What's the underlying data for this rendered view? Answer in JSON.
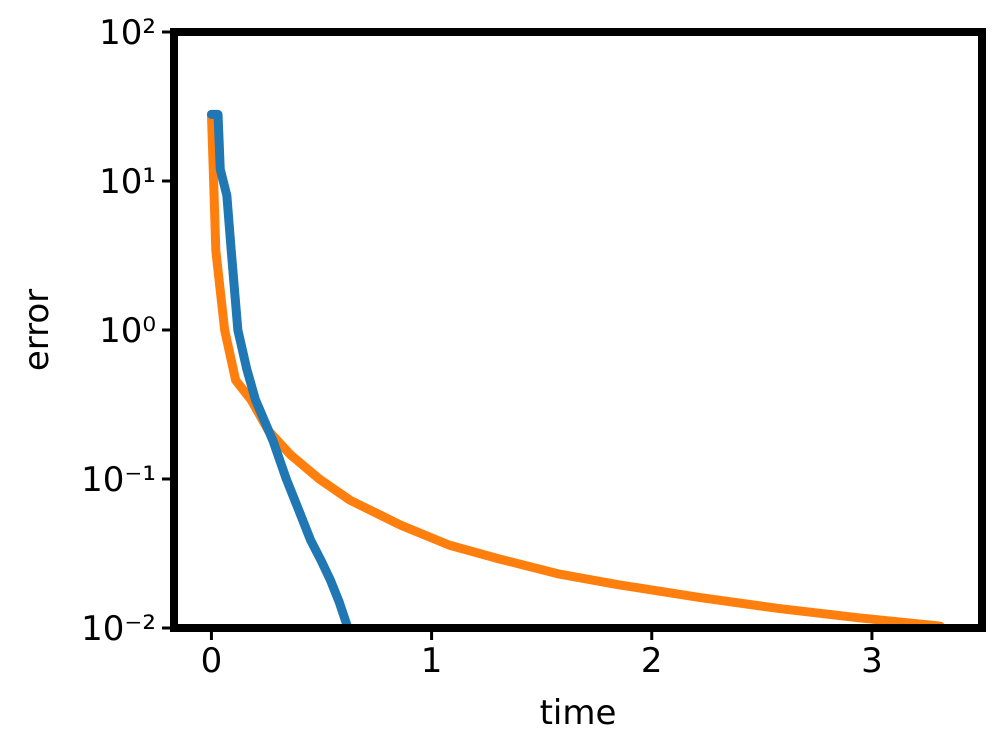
{
  "chart_data": {
    "type": "line",
    "x_label": "time",
    "y_label": "error",
    "log_y": true,
    "xlim": [
      -0.17,
      3.5
    ],
    "ylim": [
      0.01,
      100
    ],
    "xticks": [
      0,
      1,
      2,
      3
    ],
    "yticks": [
      {
        "value": 100,
        "label": "10²"
      },
      {
        "value": 10,
        "label": "10¹"
      },
      {
        "value": 1,
        "label": "10⁰"
      },
      {
        "value": 0.1,
        "label": "10⁻¹"
      },
      {
        "value": 0.01,
        "label": "10⁻²"
      }
    ],
    "series": [
      {
        "color": "#1f77b4",
        "x": [
          0.0,
          0.03,
          0.04,
          0.07,
          0.09,
          0.12,
          0.16,
          0.2,
          0.28,
          0.34,
          0.4,
          0.45,
          0.5,
          0.54,
          0.58,
          0.62
        ],
        "values": [
          28,
          28,
          12,
          8,
          3.4,
          1.0,
          0.55,
          0.34,
          0.18,
          0.1,
          0.06,
          0.039,
          0.028,
          0.021,
          0.015,
          0.01
        ]
      },
      {
        "color": "#ff7f0e",
        "x": [
          0.0,
          0.01,
          0.02,
          0.06,
          0.11,
          0.18,
          0.26,
          0.36,
          0.49,
          0.63,
          0.86,
          1.08,
          1.31,
          1.58,
          1.85,
          2.22,
          2.58,
          2.94,
          3.31
        ],
        "values": [
          28,
          10,
          3.4,
          1.0,
          0.46,
          0.34,
          0.21,
          0.145,
          0.1,
          0.072,
          0.049,
          0.036,
          0.029,
          0.023,
          0.0195,
          0.016,
          0.0135,
          0.0117,
          0.0103
        ]
      }
    ]
  }
}
